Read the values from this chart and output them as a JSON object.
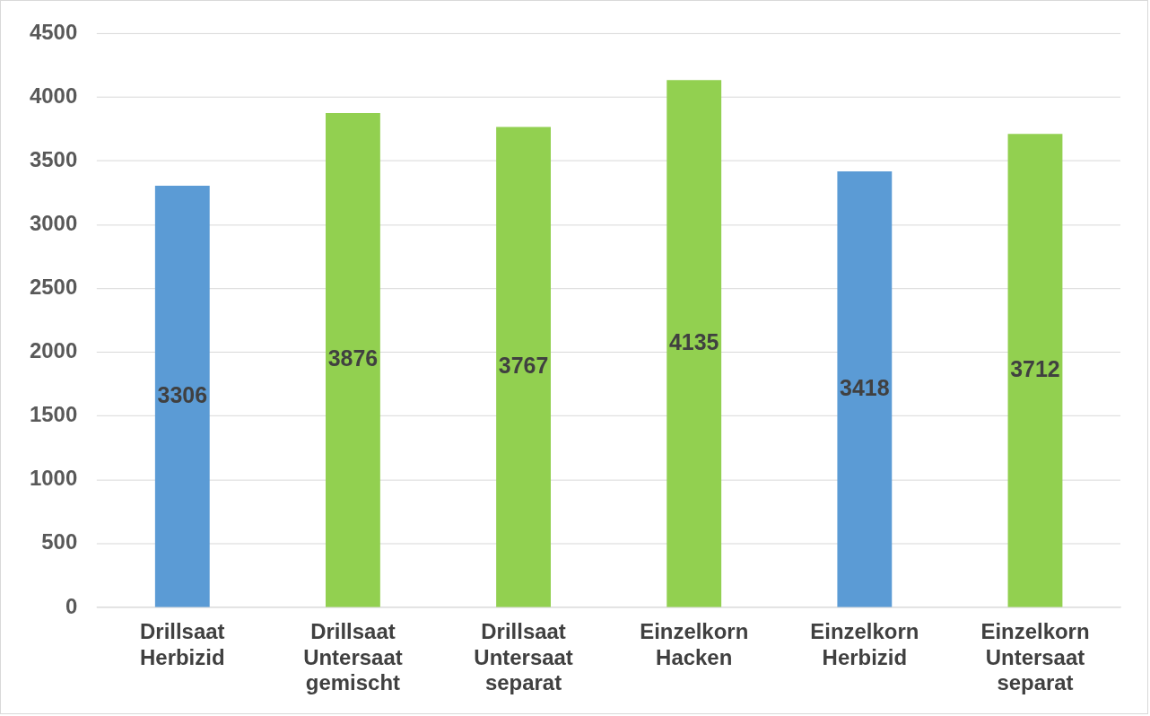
{
  "chart_data": {
    "type": "bar",
    "categories": [
      "Drillsaat Herbizid",
      "Drillsaat Untersaat gemischt",
      "Drillsaat Untersaat separat",
      "Einzelkorn Hacken",
      "Einzelkorn Herbizid",
      "Einzelkorn Untersaat separat"
    ],
    "values": [
      3306,
      3876,
      3767,
      4135,
      3418,
      3712
    ],
    "colors": [
      "#5b9bd5",
      "#92d050",
      "#92d050",
      "#92d050",
      "#5b9bd5",
      "#92d050"
    ],
    "ylim": [
      0,
      4500
    ],
    "yticks": [
      0,
      500,
      1000,
      1500,
      2000,
      2500,
      3000,
      3500,
      4000,
      4500
    ],
    "grid": "y",
    "data_labels": true,
    "legend": false
  }
}
